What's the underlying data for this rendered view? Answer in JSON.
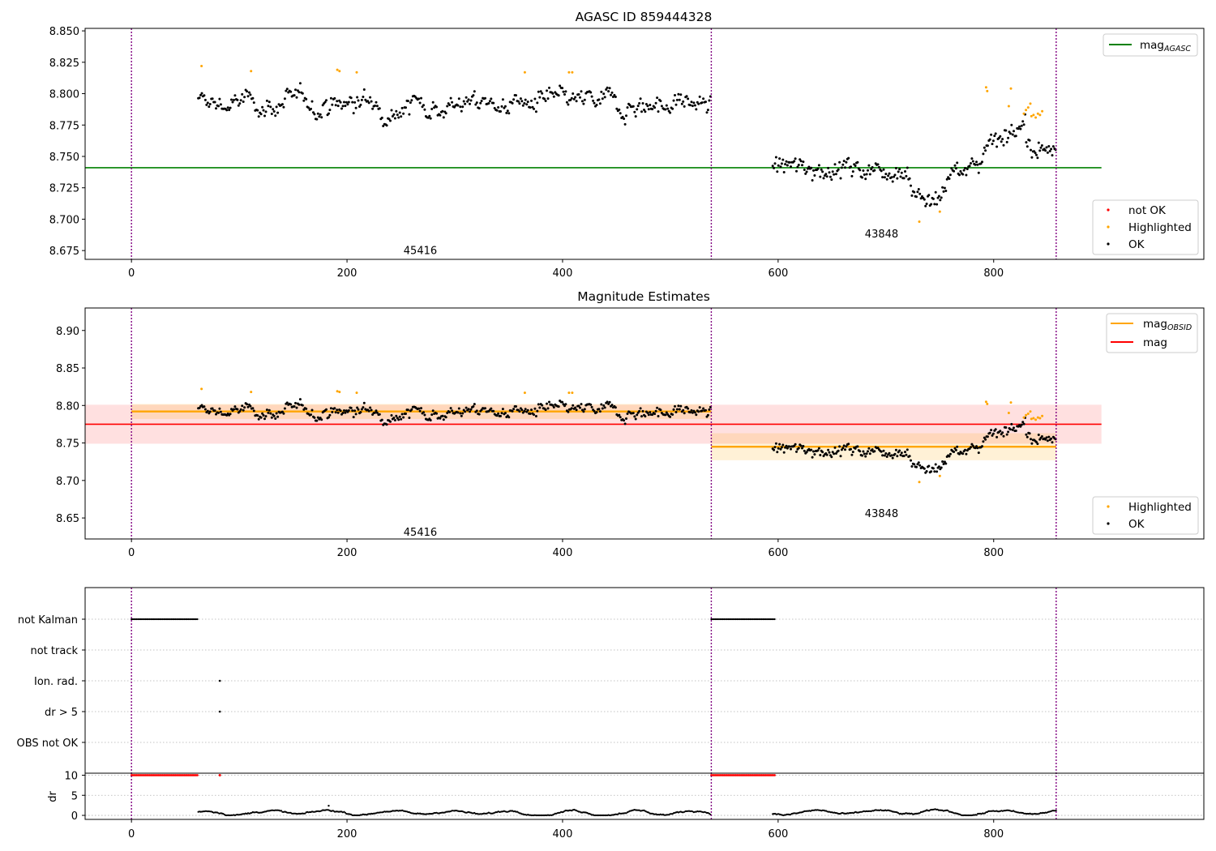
{
  "colors": {
    "ok": "#000000",
    "highlighted": "#ffa500",
    "not_ok": "#ff0000",
    "agasc_line": "#008000",
    "obsid_line": "#ffa500",
    "mag_line": "#ff0000",
    "obsid_boundary": "#800080"
  },
  "chart_data": [
    {
      "type": "scatter",
      "title": "AGASC ID 859444328",
      "xlim": [
        -43,
        995
      ],
      "ylim": [
        8.668,
        8.852
      ],
      "xticks": [
        "0",
        "200",
        "400",
        "600",
        "800"
      ],
      "yticks": [
        "8.675",
        "8.700",
        "8.725",
        "8.750",
        "8.775",
        "8.800",
        "8.825",
        "8.850"
      ],
      "obsid_boundaries": [
        0,
        538,
        858
      ],
      "obsid_labels": [
        {
          "text": "45416",
          "x": 268,
          "y": 8.6755
        },
        {
          "text": "43848",
          "x": 696,
          "y": 8.6885
        }
      ],
      "mag_agasc": 8.741,
      "mag_agasc_range": [
        -43,
        900
      ],
      "segments": [
        {
          "x0": 62,
          "x1": 538,
          "mean": 8.792,
          "std": 0.01
        },
        {
          "x0": 595,
          "x1": 858,
          "mean": 8.742,
          "std": 0.016
        }
      ],
      "highlighted": [
        [
          65,
          8.822
        ],
        [
          111,
          8.818
        ],
        [
          191,
          8.819
        ],
        [
          193,
          8.818
        ],
        [
          209,
          8.817
        ],
        [
          365,
          8.817
        ],
        [
          406,
          8.817
        ],
        [
          409,
          8.817
        ],
        [
          731,
          8.698
        ],
        [
          750,
          8.706
        ],
        [
          793,
          8.805
        ],
        [
          794,
          8.802
        ],
        [
          814,
          8.79
        ],
        [
          816,
          8.804
        ],
        [
          828,
          8.784
        ],
        [
          830,
          8.787
        ],
        [
          832,
          8.789
        ],
        [
          834,
          8.792
        ],
        [
          835,
          8.782
        ],
        [
          837,
          8.783
        ],
        [
          839,
          8.781
        ],
        [
          841,
          8.784
        ],
        [
          843,
          8.783
        ],
        [
          845,
          8.786
        ]
      ],
      "legends": [
        {
          "position": "upper-right",
          "entries": [
            "mag_AGASC"
          ]
        },
        {
          "position": "lower-right",
          "entries": [
            "not OK",
            "Highlighted",
            "OK"
          ]
        }
      ]
    },
    {
      "type": "scatter",
      "title": "Magnitude Estimates",
      "xlim": [
        -43,
        995
      ],
      "ylim": [
        8.622,
        8.93
      ],
      "xticks": [
        "0",
        "200",
        "400",
        "600",
        "800"
      ],
      "yticks": [
        "8.65",
        "8.70",
        "8.75",
        "8.80",
        "8.85",
        "8.90"
      ],
      "obsid_boundaries": [
        0,
        538,
        858
      ],
      "obsid_labels": [
        {
          "text": "45416",
          "x": 268,
          "y": 8.6315
        },
        {
          "text": "43848",
          "x": 696,
          "y": 8.6565
        }
      ],
      "mag": 8.775,
      "mag_band": [
        8.749,
        8.801
      ],
      "mag_range": [
        -43,
        900
      ],
      "obsid_mags": [
        {
          "x0": 0,
          "x1": 538,
          "mag": 8.792,
          "band": [
            8.782,
            8.802
          ]
        },
        {
          "x0": 538,
          "x1": 858,
          "mag": 8.745,
          "band": [
            8.727,
            8.763
          ]
        }
      ],
      "legends": [
        {
          "position": "upper-right",
          "entries": [
            "mag_OBSID",
            "mag"
          ]
        },
        {
          "position": "lower-right",
          "entries": [
            "Highlighted",
            "OK"
          ]
        }
      ]
    },
    {
      "type": "scatter",
      "title": "",
      "categories": [
        "not Kalman",
        "not track",
        "Ion. rad.",
        "dr > 5",
        "OBS not OK"
      ],
      "flags": {
        "not_kalman_ranges": [
          [
            0,
            62
          ],
          [
            538,
            597
          ]
        ],
        "ion_rad_points": [
          82
        ],
        "dr5_points": [
          82
        ]
      },
      "xlim": [
        -43,
        995
      ],
      "xticks": [
        "0",
        "200",
        "400",
        "600",
        "800"
      ],
      "obsid_boundaries": [
        0,
        538,
        858
      ],
      "dr_panel": {
        "ylabel": "dr",
        "yticks": [
          "0",
          "5",
          "10"
        ],
        "ylim": [
          -1,
          10.5
        ],
        "clipped_value": 10,
        "clipped_ranges": [
          [
            0,
            62
          ],
          [
            538,
            597
          ]
        ],
        "clipped_points": [
          82
        ],
        "outlier_points": [
          [
            183,
            2.4
          ]
        ]
      }
    }
  ],
  "legend_text": {
    "mag_base": "mag",
    "agasc_sub": "AGASC",
    "obsid_sub": "OBSID",
    "not_ok": "not OK",
    "highlighted": "Highlighted",
    "ok": "OK"
  }
}
